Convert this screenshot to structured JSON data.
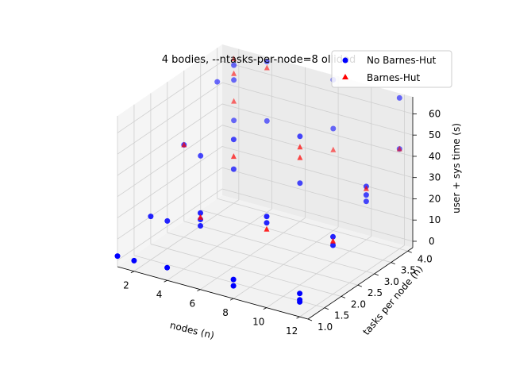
{
  "chart_data": {
    "type": "scatter",
    "projection": "3d",
    "title": "4 bodies, --ntasks-per-node=8 ollided",
    "xlabel": "nodes (n)",
    "ylabel": "tasks per node (n)",
    "zlabel": "user + sys time (s)",
    "xlim": [
      1,
      12.5
    ],
    "ylim": [
      1,
      4.15
    ],
    "zlim": [
      -3,
      68
    ],
    "x_ticks": [
      "2",
      "4",
      "6",
      "8",
      "10",
      "12"
    ],
    "y_ticks": [
      "1.0",
      "1.5",
      "2.0",
      "2.5",
      "3.0",
      "3.5",
      "4.0"
    ],
    "z_ticks": [
      "0",
      "10",
      "20",
      "30",
      "40",
      "50",
      "60"
    ],
    "grid": true,
    "legend_position": "upper-right",
    "series": [
      {
        "name": "No Barnes-Hut",
        "marker": "circle",
        "color": "#0000ff",
        "points": [
          [
            1,
            1,
            2
          ],
          [
            2,
            1,
            2
          ],
          [
            4,
            1,
            3
          ],
          [
            8,
            1,
            3
          ],
          [
            12,
            1,
            4
          ],
          [
            12,
            1,
            5
          ],
          [
            8,
            1,
            6
          ],
          [
            12,
            1,
            8
          ],
          [
            1,
            2,
            10
          ],
          [
            2,
            2,
            10
          ],
          [
            4,
            2,
            12
          ],
          [
            4,
            2,
            15
          ],
          [
            8,
            2,
            22
          ],
          [
            12,
            2,
            24
          ],
          [
            8,
            2,
            25
          ],
          [
            12,
            2,
            20
          ],
          [
            4,
            2,
            18
          ],
          [
            1,
            3,
            33
          ],
          [
            2,
            3,
            30
          ],
          [
            4,
            3,
            28
          ],
          [
            8,
            3,
            30
          ],
          [
            12,
            3,
            30
          ],
          [
            4,
            3,
            42
          ],
          [
            8,
            3,
            52
          ],
          [
            12,
            3,
            33
          ],
          [
            12,
            3,
            37
          ],
          [
            1,
            4,
            52
          ],
          [
            2,
            4,
            36
          ],
          [
            4,
            4,
            40
          ],
          [
            8,
            4,
            45
          ],
          [
            12,
            4,
            44
          ],
          [
            2,
            4,
            55
          ],
          [
            2,
            4,
            62
          ],
          [
            4,
            4,
            68
          ],
          [
            8,
            4,
            68
          ],
          [
            12,
            4,
            68
          ]
        ]
      },
      {
        "name": "Barnes-Hut",
        "marker": "triangle",
        "color": "#ff0000",
        "points": [
          [
            4,
            2,
            16
          ],
          [
            8,
            2,
            19
          ],
          [
            12,
            2,
            22
          ],
          [
            12,
            3,
            36
          ],
          [
            8,
            3,
            47
          ],
          [
            8,
            3,
            42
          ],
          [
            2,
            4,
            58
          ],
          [
            2,
            4,
            45
          ],
          [
            2,
            4,
            65
          ],
          [
            4,
            4,
            65
          ],
          [
            8,
            4,
            35
          ],
          [
            4,
            3,
            34
          ],
          [
            12,
            4,
            44
          ],
          [
            1,
            3,
            33
          ]
        ]
      }
    ]
  }
}
